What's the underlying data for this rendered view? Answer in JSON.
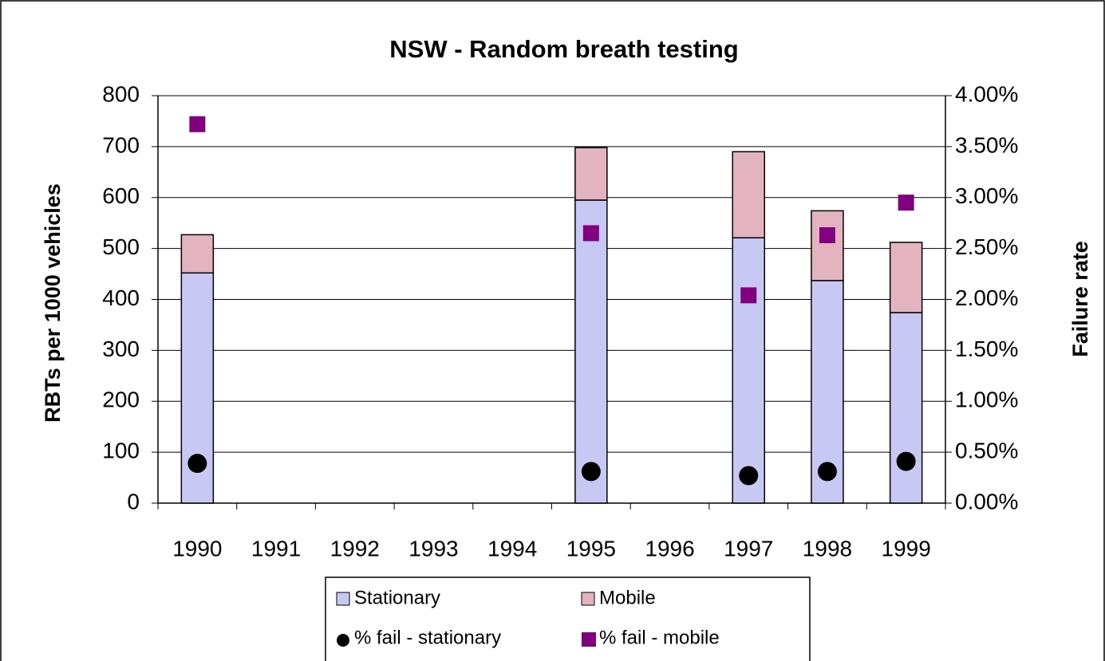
{
  "chart_data": {
    "type": "bar",
    "title": "NSW - Random breath testing",
    "y_label": "RBTs per 1000 vehicles",
    "y2_label": "Failure rate",
    "categories": [
      "1990",
      "1991",
      "1992",
      "1993",
      "1994",
      "1995",
      "1996",
      "1997",
      "1998",
      "1999"
    ],
    "stacked": true,
    "series": [
      {
        "name": "Stationary",
        "color": "#c8c8f4",
        "values": [
          452,
          null,
          null,
          null,
          null,
          595,
          null,
          521,
          437,
          374
        ]
      },
      {
        "name": "Mobile",
        "color": "#e3b4bf",
        "values": [
          75,
          null,
          null,
          null,
          null,
          103,
          null,
          169,
          137,
          138
        ]
      },
      {
        "name": "% fail - stationary",
        "color": "#000000",
        "marker": "circle",
        "axis": "y2",
        "values": [
          0.39,
          null,
          null,
          null,
          null,
          0.31,
          null,
          0.27,
          0.31,
          0.41
        ]
      },
      {
        "name": "% fail - mobile",
        "color": "#800080",
        "marker": "square",
        "axis": "y2",
        "values": [
          3.72,
          null,
          null,
          null,
          null,
          2.65,
          null,
          2.04,
          2.63,
          2.95
        ]
      }
    ],
    "ylim": [
      0,
      800
    ],
    "yticks": [
      0,
      100,
      200,
      300,
      400,
      500,
      600,
      700,
      800
    ],
    "y2lim": [
      0,
      4
    ],
    "y2ticks": [
      {
        "value": 0,
        "label": "0.00%"
      },
      {
        "value": 0.5,
        "label": "0.50%"
      },
      {
        "value": 1,
        "label": "1.00%"
      },
      {
        "value": 1.5,
        "label": "1.50%"
      },
      {
        "value": 2,
        "label": "2.00%"
      },
      {
        "value": 2.5,
        "label": "2.50%"
      },
      {
        "value": 3,
        "label": "3.00%"
      },
      {
        "value": 3.5,
        "label": "3.50%"
      },
      {
        "value": 4,
        "label": "4.00%"
      }
    ],
    "grid": true,
    "legend": "bottom"
  }
}
